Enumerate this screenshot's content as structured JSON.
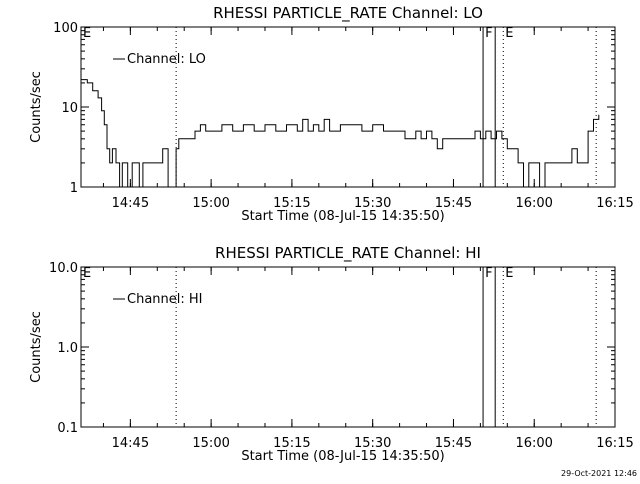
{
  "footer_date": "29-Oct-2021 12:46",
  "colors": {
    "background": "#ffffff",
    "foreground": "#000000"
  },
  "chart_data": [
    {
      "type": "line",
      "title": "RHESSI PARTICLE_RATE Channel: LO",
      "xlabel": "Start Time (08-Jul-15 14:35:50)",
      "ylabel": "Counts/sec",
      "yscale": "log",
      "xlim": [
        "14:35:50",
        "16:15:00"
      ],
      "ylim": [
        1,
        100
      ],
      "x_ticks": [
        "14:45",
        "15:00",
        "15:15",
        "15:30",
        "15:45",
        "16:00",
        "16:15"
      ],
      "y_ticks": [
        "1",
        "10",
        "100"
      ],
      "legend": {
        "position": "top-left",
        "entries": [
          "Channel: LO"
        ]
      },
      "grid": false,
      "markers": [
        {
          "time": "14:35:50",
          "label": "E",
          "style": "solid"
        },
        {
          "time": "14:53:30",
          "label": "",
          "style": "dotted"
        },
        {
          "time": "15:50:30",
          "label": "F",
          "style": "solid"
        },
        {
          "time": "15:52:45",
          "label": "",
          "style": "solid"
        },
        {
          "time": "15:54:15",
          "label": "E",
          "style": "dotted"
        },
        {
          "time": "16:11:30",
          "label": "",
          "style": "dotted"
        }
      ],
      "series": [
        {
          "name": "Channel: LO",
          "points": [
            [
              "14:35:50",
              22
            ],
            [
              "14:37:00",
              20
            ],
            [
              "14:38:00",
              16
            ],
            [
              "14:39:00",
              13
            ],
            [
              "14:39:40",
              9
            ],
            [
              "14:40:10",
              6
            ],
            [
              "14:40:40",
              3
            ],
            [
              "14:41:10",
              2
            ],
            [
              "14:41:40",
              3
            ],
            [
              "14:42:20",
              2
            ],
            [
              "14:43:00",
              1
            ],
            [
              "14:43:30",
              2
            ],
            [
              "14:44:30",
              1
            ],
            [
              "14:45:20",
              2
            ],
            [
              "14:46:40",
              1
            ],
            [
              "14:47:20",
              2
            ],
            [
              "14:49:00",
              2
            ],
            [
              "14:50:00",
              2
            ],
            [
              "14:51:00",
              3
            ],
            [
              "14:52:00",
              1
            ],
            [
              "14:53:30",
              3
            ],
            [
              "14:54:00",
              4
            ],
            [
              "14:56:00",
              4
            ],
            [
              "14:57:00",
              5
            ],
            [
              "14:58:00",
              6
            ],
            [
              "14:59:00",
              5
            ],
            [
              "15:00:00",
              5
            ],
            [
              "15:02:00",
              6
            ],
            [
              "15:04:00",
              5
            ],
            [
              "15:06:00",
              6
            ],
            [
              "15:08:00",
              5
            ],
            [
              "15:10:00",
              6
            ],
            [
              "15:12:00",
              5
            ],
            [
              "15:14:00",
              6
            ],
            [
              "15:16:00",
              5
            ],
            [
              "15:17:00",
              7
            ],
            [
              "15:18:00",
              5
            ],
            [
              "15:19:00",
              6
            ],
            [
              "15:20:00",
              5
            ],
            [
              "15:21:00",
              7
            ],
            [
              "15:22:00",
              5
            ],
            [
              "15:24:00",
              6
            ],
            [
              "15:26:00",
              6
            ],
            [
              "15:28:00",
              5
            ],
            [
              "15:30:00",
              6
            ],
            [
              "15:32:00",
              5
            ],
            [
              "15:34:00",
              5
            ],
            [
              "15:36:00",
              4
            ],
            [
              "15:38:00",
              5
            ],
            [
              "15:39:00",
              4
            ],
            [
              "15:40:00",
              5
            ],
            [
              "15:41:00",
              4
            ],
            [
              "15:42:00",
              3
            ],
            [
              "15:43:00",
              4
            ],
            [
              "15:44:00",
              4
            ],
            [
              "15:46:00",
              4
            ],
            [
              "15:48:00",
              4
            ],
            [
              "15:49:00",
              5
            ],
            [
              "15:50:00",
              4
            ],
            [
              "15:51:00",
              5
            ],
            [
              "15:52:00",
              4
            ],
            [
              "15:53:00",
              5
            ],
            [
              "15:54:00",
              4
            ],
            [
              "15:55:00",
              3
            ],
            [
              "15:56:00",
              3
            ],
            [
              "15:57:00",
              2
            ],
            [
              "15:58:00",
              1
            ],
            [
              "15:59:00",
              2
            ],
            [
              "16:01:00",
              1
            ],
            [
              "16:02:00",
              2
            ],
            [
              "16:04:00",
              2
            ],
            [
              "16:06:00",
              2
            ],
            [
              "16:07:00",
              3
            ],
            [
              "16:08:00",
              2
            ],
            [
              "16:10:00",
              5
            ],
            [
              "16:11:00",
              7
            ],
            [
              "16:12:00",
              8
            ]
          ]
        }
      ]
    },
    {
      "type": "line",
      "title": "RHESSI PARTICLE_RATE Channel: HI",
      "xlabel": "Start Time (08-Jul-15 14:35:50)",
      "ylabel": "Counts/sec",
      "yscale": "log",
      "xlim": [
        "14:35:50",
        "16:15:00"
      ],
      "ylim": [
        0.1,
        10
      ],
      "x_ticks": [
        "14:45",
        "15:00",
        "15:15",
        "15:30",
        "15:45",
        "16:00",
        "16:15"
      ],
      "y_ticks": [
        "0.1",
        "1.0",
        "10.0"
      ],
      "legend": {
        "position": "top-left",
        "entries": [
          "Channel: HI"
        ]
      },
      "grid": false,
      "markers": [
        {
          "time": "14:35:50",
          "label": "E",
          "style": "solid"
        },
        {
          "time": "14:53:30",
          "label": "",
          "style": "dotted"
        },
        {
          "time": "15:50:30",
          "label": "F",
          "style": "solid"
        },
        {
          "time": "15:52:45",
          "label": "",
          "style": "solid"
        },
        {
          "time": "15:54:15",
          "label": "E",
          "style": "dotted"
        },
        {
          "time": "16:11:30",
          "label": "",
          "style": "dotted"
        }
      ],
      "series": [
        {
          "name": "Channel: HI",
          "points": []
        }
      ]
    }
  ]
}
